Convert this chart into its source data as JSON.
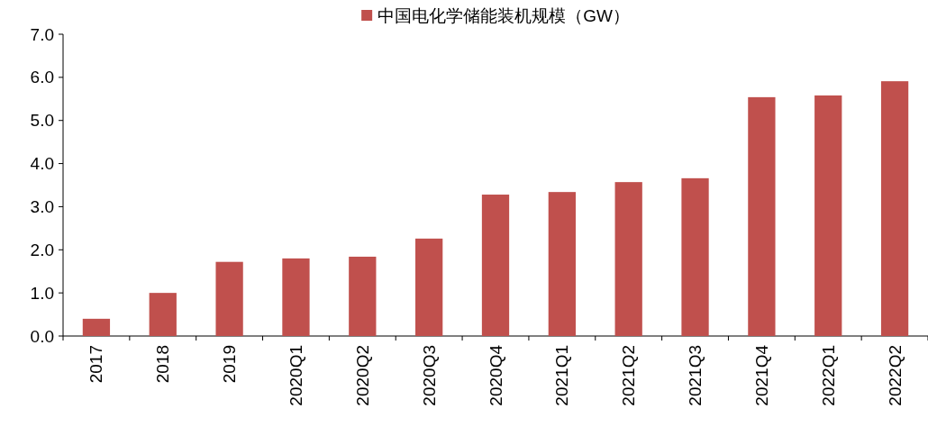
{
  "chart_data": {
    "type": "bar",
    "categories": [
      "2017",
      "2018",
      "2019",
      "2020Q1",
      "2020Q2",
      "2020Q3",
      "2020Q4",
      "2021Q1",
      "2021Q2",
      "2021Q3",
      "2021Q4",
      "2022Q1",
      "2022Q2"
    ],
    "series": [
      {
        "name": "中国电化学储能装机规模（GW）",
        "color": "#c0504d",
        "values": [
          0.4,
          1.0,
          1.72,
          1.8,
          1.84,
          2.26,
          3.28,
          3.34,
          3.57,
          3.66,
          5.54,
          5.58,
          5.91
        ]
      }
    ],
    "ylim": [
      0,
      7
    ],
    "yticks": [
      {
        "value": 0,
        "label": "0.0"
      },
      {
        "value": 1,
        "label": "1.0"
      },
      {
        "value": 2,
        "label": "2.0"
      },
      {
        "value": 3,
        "label": "3.0"
      },
      {
        "value": 4,
        "label": "4.0"
      },
      {
        "value": 5,
        "label": "5.0"
      },
      {
        "value": 6,
        "label": "6.0"
      },
      {
        "value": 7,
        "label": "7.0"
      }
    ],
    "legend": "top"
  }
}
